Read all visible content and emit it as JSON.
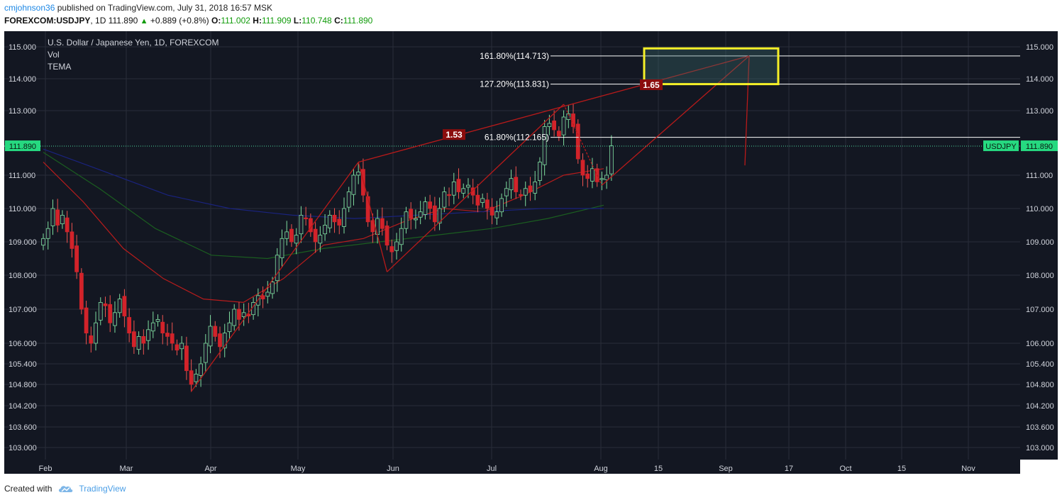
{
  "header": {
    "username": "cmjohnson36",
    "published_text": "published on TradingView.com, July 31, 2018 16:57 MSK",
    "symbol": "FOREXCOM:USDJPY",
    "interval": "1D",
    "last": "111.890",
    "change": "+0.889 (+0.8%)",
    "o_label": "O:",
    "o_value": "111.002",
    "h_label": "H:",
    "h_value": "111.909",
    "l_label": "L:",
    "l_value": "110.748",
    "c_label": "C:",
    "c_value": "111.890"
  },
  "footer": {
    "created_with": "Created with",
    "brand": "TradingView"
  },
  "colors": {
    "background": "#131722",
    "grid": "#2a2e39",
    "up": "#26a69a",
    "up_body": "#1e1e2e",
    "up_border": "#7fdfa0",
    "down": "#ef5350",
    "down_body": "#d2232a",
    "current_price_tag": "#26d980",
    "fib_line": "#ffffff",
    "target_box": "#f5f028",
    "pattern_line": "#b81a1a",
    "tema_red": "#b71c1c",
    "tema_green": "#1b5e20",
    "tema_blue": "#1a237e"
  },
  "chart_data": {
    "type": "candlestick",
    "title": "U.S. Dollar / Japanese Yen, 1D, FOREXCOM",
    "indicators": [
      "Vol",
      "TEMA"
    ],
    "yaxis_ticks": [
      "115.000",
      "114.000",
      "113.000",
      "111.000",
      "110.000",
      "109.000",
      "108.000",
      "107.000",
      "106.000",
      "105.400",
      "104.800",
      "104.200",
      "103.600",
      "103.000"
    ],
    "xaxis_ticks": [
      "Feb",
      "Mar",
      "Apr",
      "May",
      "Jun",
      "Jul",
      "Aug",
      "15",
      "Sep",
      "17",
      "Oct",
      "15",
      "Nov"
    ],
    "current_price": {
      "symbol": "USDJPY",
      "value": "111.890"
    },
    "fib_levels": [
      {
        "label": "161.80%(114.713)",
        "value": 114.713
      },
      {
        "label": "127.20%(113.831)",
        "value": 113.831
      },
      {
        "label": "61.80%(112.165)",
        "value": 112.165
      }
    ],
    "ratio_labels": [
      "1.53",
      "1.65"
    ],
    "closes": [
      109.1,
      109.4,
      110.0,
      109.5,
      109.8,
      109.3,
      108.8,
      108.1,
      107.0,
      106.3,
      106.0,
      106.6,
      107.2,
      107.1,
      106.6,
      106.9,
      107.3,
      106.8,
      106.3,
      105.9,
      106.2,
      106.0,
      106.4,
      106.6,
      106.7,
      106.3,
      106.2,
      106.0,
      105.8,
      106.0,
      105.2,
      104.8,
      105.1,
      105.4,
      106.0,
      106.5,
      106.2,
      105.9,
      106.3,
      106.6,
      107.0,
      106.7,
      106.9,
      106.8,
      107.2,
      107.4,
      107.3,
      107.5,
      107.8,
      108.6,
      109.1,
      109.3,
      109.0,
      109.2,
      109.8,
      109.7,
      109.3,
      109.0,
      109.2,
      109.5,
      109.8,
      109.6,
      109.5,
      110.0,
      110.5,
      111.0,
      111.1,
      110.4,
      109.6,
      109.3,
      109.7,
      109.4,
      108.9,
      108.7,
      109.0,
      109.4,
      109.9,
      109.7,
      109.7,
      109.9,
      110.2,
      110.0,
      109.6,
      110.0,
      110.5,
      110.4,
      110.8,
      110.5,
      110.6,
      110.7,
      110.4,
      110.1,
      110.3,
      110.0,
      109.8,
      109.9,
      110.3,
      110.6,
      110.9,
      110.5,
      110.4,
      110.6,
      110.5,
      110.8,
      111.4,
      112.5,
      112.6,
      112.4,
      112.2,
      112.8,
      112.9,
      112.5,
      111.5,
      111.0,
      110.9,
      111.2,
      110.8,
      110.9,
      111.0,
      111.9
    ],
    "tema_red": [
      111.4,
      110.2,
      108.8,
      107.9,
      107.3,
      107.2,
      107.9,
      108.9,
      109.1,
      109.6,
      110.0,
      109.9,
      110.4,
      111.0,
      111.2
    ],
    "tema_green": [
      111.7,
      110.6,
      109.4,
      108.6,
      108.5,
      108.8,
      109.0,
      109.2,
      109.4,
      109.7,
      110.1
    ],
    "tema_blue": [
      111.8,
      111.1,
      110.4,
      110.0,
      109.8,
      109.7,
      109.8,
      109.9,
      110.0,
      110.0
    ]
  }
}
